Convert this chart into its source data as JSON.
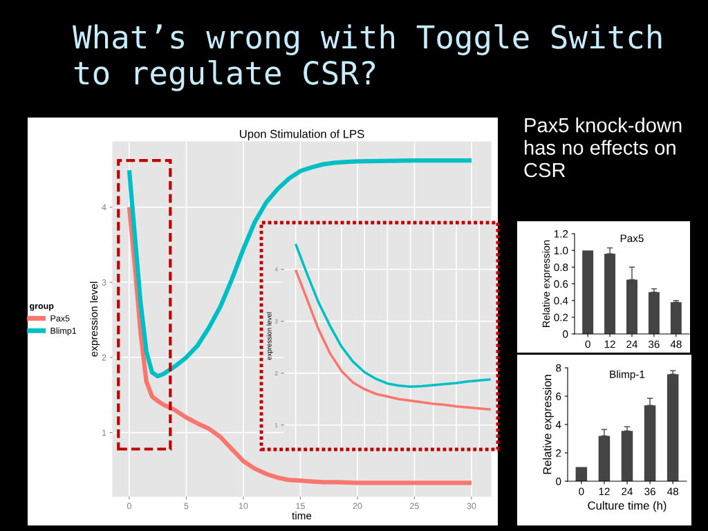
{
  "chart_data": [
    {
      "type": "other",
      "title": "What’s wrong with Toggle Switch to regulate CSR?",
      "annotations": [
        "Pax5 knock-down has no effects on CSR"
      ]
    },
    {
      "type": "line",
      "title": "Upon Stimulation of LPS",
      "xlabel": "time",
      "ylabel": "expression level",
      "legend_title": "group",
      "legend": "left",
      "grid": true,
      "x": [
        0,
        0.5,
        1,
        1.5,
        2,
        2.5,
        3,
        4,
        5,
        6,
        7,
        8,
        9,
        10,
        11,
        12,
        13,
        14,
        15,
        16,
        17,
        18,
        20,
        25,
        30
      ],
      "series": [
        {
          "name": "Pax5",
          "color": "#f8766d",
          "values": [
            4.0,
            3.2,
            2.32,
            1.68,
            1.48,
            1.42,
            1.37,
            1.3,
            1.2,
            1.12,
            1.05,
            0.94,
            0.78,
            0.62,
            0.52,
            0.45,
            0.4,
            0.37,
            0.36,
            0.35,
            0.34,
            0.34,
            0.33,
            0.33,
            0.33
          ]
        },
        {
          "name": "Blimp1",
          "color": "#00bfc4",
          "values": [
            4.49,
            3.6,
            2.72,
            2.08,
            1.8,
            1.75,
            1.78,
            1.88,
            2.0,
            2.16,
            2.4,
            2.68,
            3.04,
            3.44,
            3.8,
            4.06,
            4.24,
            4.38,
            4.48,
            4.53,
            4.57,
            4.59,
            4.61,
            4.62,
            4.62
          ]
        }
      ],
      "xlim": [
        -1.45,
        31.7
      ],
      "ylim": [
        0.15,
        4.87
      ],
      "xticks": [
        0,
        5,
        10,
        15,
        20,
        25,
        30
      ],
      "yticks": [
        1,
        2,
        3,
        4
      ]
    },
    {
      "type": "line",
      "ylabel": "expression level",
      "grid": true,
      "tick_labels": "y",
      "categories": [
        null,
        null,
        null,
        null,
        null,
        null,
        null,
        null,
        null,
        null,
        null,
        null,
        null,
        null,
        null,
        null,
        null,
        null
      ],
      "series": [
        {
          "color": "#f8766d",
          "values": [
            3.99,
            3.42,
            2.84,
            2.38,
            2.04,
            1.82,
            1.69,
            1.6,
            1.55,
            1.5,
            1.47,
            1.44,
            1.41,
            1.39,
            1.36,
            1.34,
            1.32,
            1.3
          ]
        },
        {
          "color": "#00bfc4",
          "values": [
            4.49,
            3.91,
            3.36,
            2.91,
            2.51,
            2.22,
            2.02,
            1.89,
            1.8,
            1.76,
            1.74,
            1.75,
            1.77,
            1.79,
            1.81,
            1.84,
            1.86,
            1.88
          ]
        }
      ],
      "ylim": [
        0.53,
        4.9
      ],
      "yticks": [
        1,
        2,
        3,
        4
      ]
    },
    {
      "type": "bar",
      "title": "Pax5",
      "ylabel": "Relative expression",
      "color": "#444444",
      "grid": false,
      "categories": [
        "0",
        "12",
        "24",
        "36",
        "48"
      ],
      "values": [
        1.0,
        0.96,
        0.65,
        0.5,
        0.38
      ],
      "errors": [
        null,
        [
          0.96,
          1.03
        ],
        [
          0.65,
          0.8
        ],
        [
          0.5,
          0.54
        ],
        [
          0.38,
          0.4
        ]
      ],
      "ylim": [
        0,
        1.2
      ],
      "yticks": [
        0,
        0.2,
        0.4,
        0.6,
        0.8,
        {
          "value": 1.0,
          "label": "1.0"
        },
        1.2
      ]
    },
    {
      "type": "bar",
      "title": "Blimp-1",
      "xlabel": "Culture time (h)",
      "ylabel": "Relative expression",
      "color": "#444444",
      "grid": false,
      "categories": [
        "0",
        "12",
        "24",
        "36",
        "48"
      ],
      "values": [
        1.0,
        3.2,
        3.55,
        5.35,
        7.55
      ],
      "errors": [
        null,
        [
          3.2,
          3.65
        ],
        [
          3.55,
          3.85
        ],
        [
          5.35,
          5.85
        ],
        [
          7.55,
          7.8
        ]
      ],
      "ylim": [
        0,
        8
      ],
      "yticks": [
        0,
        2,
        4,
        6,
        8
      ]
    }
  ]
}
